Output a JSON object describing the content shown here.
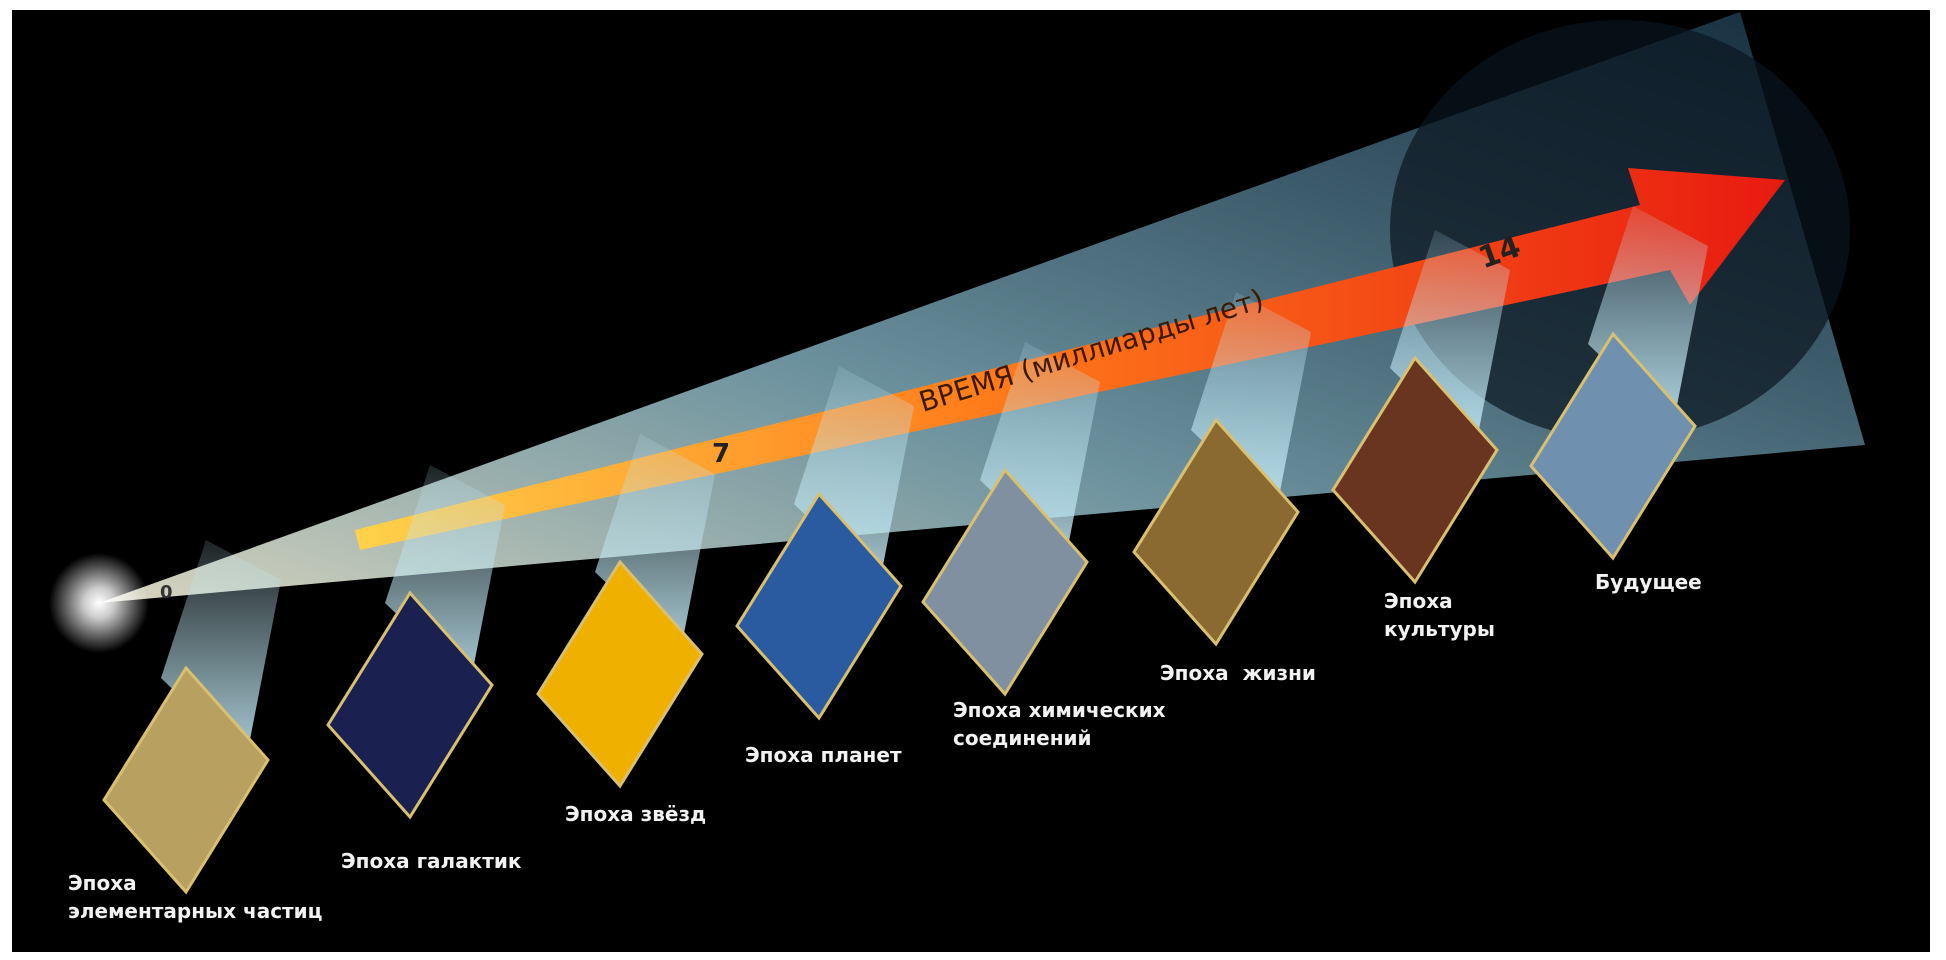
{
  "arrow": {
    "label": "ВРЕМЯ (миллиарды лет)",
    "markers": [
      "0",
      "7",
      "14"
    ]
  },
  "epochs": [
    {
      "lines": [
        "Эпоха",
        "элементарных частиц"
      ]
    },
    {
      "lines": [
        "Эпоха галактик"
      ]
    },
    {
      "lines": [
        "Эпоха звёзд"
      ]
    },
    {
      "lines": [
        "Эпоха планет"
      ]
    },
    {
      "lines": [
        "Эпоха химических",
        "соединений"
      ]
    },
    {
      "lines": [
        "Эпоха  жизни"
      ]
    },
    {
      "lines": [
        "Эпоха",
        "культуры"
      ]
    },
    {
      "lines": [
        "Будущее"
      ]
    }
  ]
}
